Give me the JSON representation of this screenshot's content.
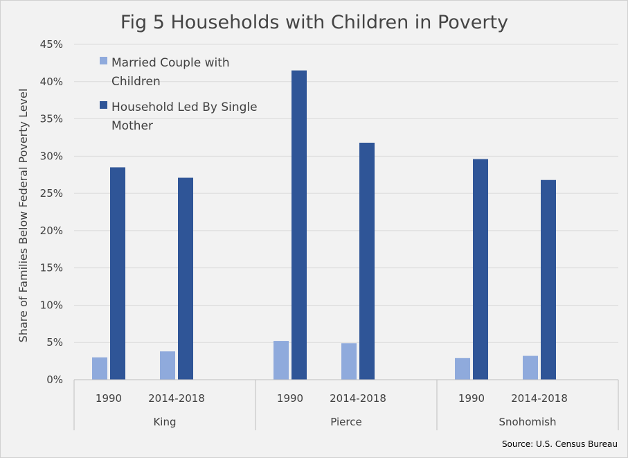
{
  "chart_data": {
    "type": "bar",
    "title": "Fig 5 Households with Children in Poverty",
    "ylabel": "Share of Families Below  Federal Poverty Level",
    "xlabel": "",
    "ylim": [
      0,
      45
    ],
    "ytick_labels": [
      "0%",
      "5%",
      "10%",
      "15%",
      "20%",
      "25%",
      "30%",
      "35%",
      "40%",
      "45%"
    ],
    "groups": [
      "King",
      "Pierce",
      "Snohomish"
    ],
    "categories": [
      "1990",
      "2014-2018"
    ],
    "series": [
      {
        "name": "Married Couple with Children",
        "legend_lines": [
          "Married Couple with",
          "Children"
        ],
        "color": "#8faadc",
        "values": [
          [
            3.0,
            3.8
          ],
          [
            5.2,
            4.9
          ],
          [
            2.9,
            3.2
          ]
        ]
      },
      {
        "name": "Household Led By Single Mother",
        "legend_lines": [
          "Household Led By Single",
          "Mother"
        ],
        "color": "#2f5597",
        "values": [
          [
            28.5,
            27.1
          ],
          [
            41.5,
            31.8
          ],
          [
            29.6,
            26.8
          ]
        ]
      }
    ],
    "grid": true,
    "legend_position": "top-left",
    "source": "Source: U.S. Census Bureau"
  }
}
